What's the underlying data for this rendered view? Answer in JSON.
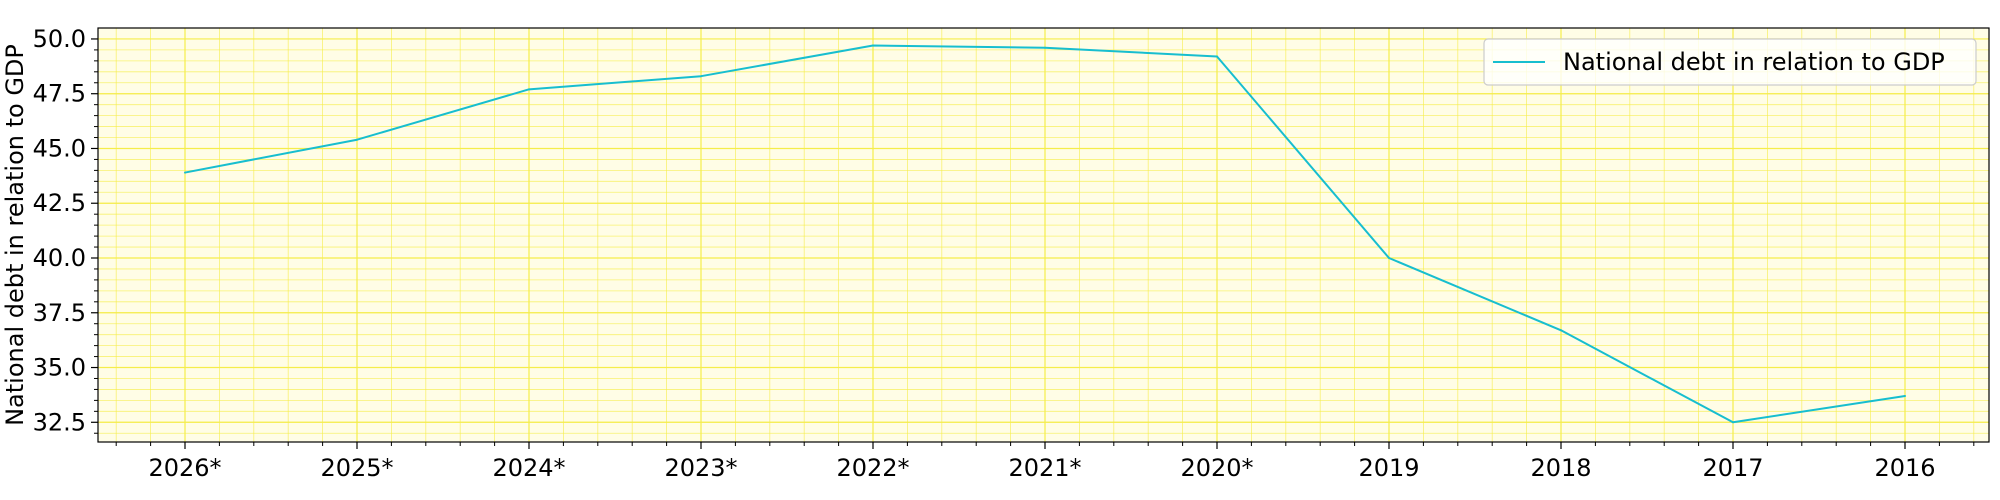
{
  "chart_data": {
    "type": "line",
    "title": "",
    "xlabel": "",
    "ylabel": "National debt in relation to GDP",
    "categories": [
      "2026*",
      "2025*",
      "2024*",
      "2023*",
      "2022*",
      "2021*",
      "2020*",
      "2019",
      "2018",
      "2017",
      "2016"
    ],
    "series": [
      {
        "name": "National debt in relation to GDP",
        "values": [
          43.9,
          45.4,
          47.7,
          48.3,
          49.7,
          49.6,
          49.2,
          40.0,
          36.7,
          32.5,
          33.7
        ],
        "color": "#17becf"
      }
    ],
    "ylim": [
      31.6,
      50.5
    ],
    "yticks": [
      32.5,
      35.0,
      37.5,
      40.0,
      42.5,
      45.0,
      47.5,
      50.0
    ],
    "ytick_labels": [
      "32.5",
      "35.0",
      "37.5",
      "40.0",
      "42.5",
      "45.0",
      "47.5",
      "50.0"
    ],
    "grid": true,
    "minor_grid": true,
    "plot_background": "#fffde6",
    "grid_color": "#f5ed4a",
    "legend_position": "top-right"
  }
}
